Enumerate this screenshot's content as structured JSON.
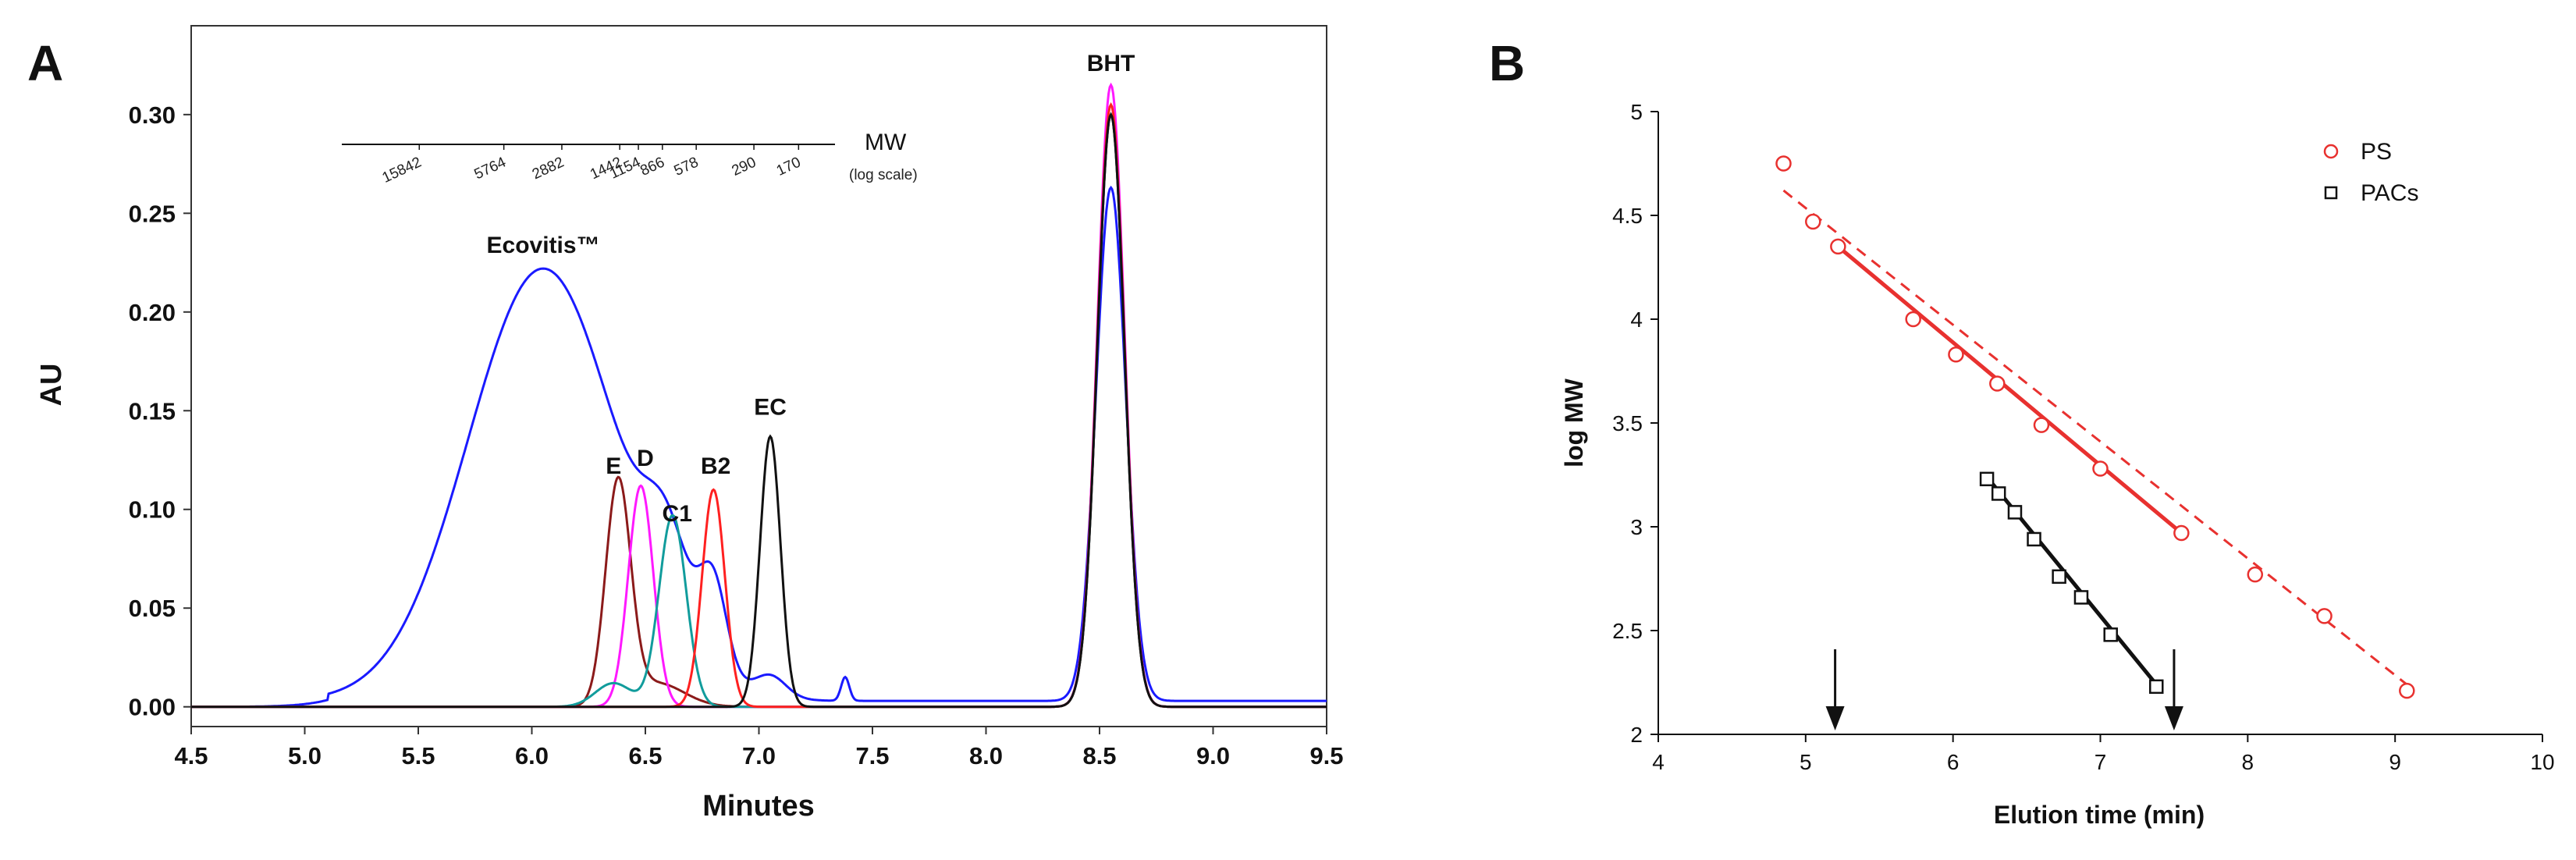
{
  "chart_data": [
    {
      "panel": "A",
      "type": "line",
      "xlabel": "Minutes",
      "ylabel": "AU",
      "xlim": [
        4.5,
        9.5
      ],
      "ylim": [
        -0.01,
        0.345
      ],
      "x_ticks": [
        "4.5",
        "5.0",
        "5.5",
        "6.0",
        "6.5",
        "7.0",
        "7.5",
        "8.0",
        "8.5",
        "9.0",
        "9.5"
      ],
      "y_ticks": [
        "0.00",
        "0.05",
        "0.10",
        "0.15",
        "0.20",
        "0.25",
        "0.30"
      ],
      "series": [
        {
          "name": "Ecovitis™",
          "color": "#1a1aff",
          "peaks": [
            [
              6.05,
              0.219,
              0.33
            ],
            [
              6.6,
              0.045,
              0.1
            ],
            [
              6.8,
              0.045,
              0.06
            ],
            [
              7.05,
              0.011,
              0.07
            ],
            [
              7.38,
              0.012,
              0.018
            ],
            [
              8.55,
              0.26,
              0.065
            ]
          ],
          "baseline": 0.003
        },
        {
          "name": "E",
          "color": "#8b1a1a",
          "peaks": [
            [
              6.38,
              0.112,
              0.055
            ],
            [
              6.55,
              0.012,
              0.12
            ],
            [
              8.55,
              0.3,
              0.06
            ]
          ],
          "baseline": 0.0
        },
        {
          "name": "D",
          "color": "#ff19ff",
          "peaks": [
            [
              6.48,
              0.112,
              0.055
            ],
            [
              8.55,
              0.315,
              0.06
            ]
          ],
          "baseline": 0.0
        },
        {
          "name": "C1",
          "color": "#119c9c",
          "peaks": [
            [
              6.62,
              0.097,
              0.06
            ],
            [
              6.36,
              0.012,
              0.08
            ],
            [
              8.55,
              0.3,
              0.06
            ]
          ],
          "baseline": 0.0
        },
        {
          "name": "B2",
          "color": "#ff2020",
          "peaks": [
            [
              6.8,
              0.11,
              0.05
            ],
            [
              8.55,
              0.305,
              0.06
            ]
          ],
          "baseline": 0.0
        },
        {
          "name": "EC",
          "color": "#111111",
          "peaks": [
            [
              7.05,
              0.137,
              0.045
            ],
            [
              8.55,
              0.3,
              0.06
            ]
          ],
          "baseline": 0.0
        }
      ],
      "peak_labels": [
        {
          "text": "Ecovitis™",
          "x": 6.05,
          "y": 0.23
        },
        {
          "text": "E",
          "x": 6.36,
          "y": 0.118
        },
        {
          "text": "D",
          "x": 6.5,
          "y": 0.122
        },
        {
          "text": "C1",
          "x": 6.64,
          "y": 0.094
        },
        {
          "text": "B2",
          "x": 6.81,
          "y": 0.118
        },
        {
          "text": "EC",
          "x": 7.05,
          "y": 0.148
        },
        {
          "text": "BHT",
          "x": 8.55,
          "y": 0.322
        }
      ],
      "mw_scale": {
        "label": "MW",
        "sublabel": "(log scale)",
        "ticks": [
          "15842",
          "5764",
          "2882",
          "1442",
          "1154",
          "866",
          "578",
          "290",
          "170"
        ]
      }
    },
    {
      "panel": "B",
      "type": "scatter",
      "xlabel": "Elution time (min)",
      "ylabel": "log MW",
      "xlim": [
        4,
        10
      ],
      "ylim": [
        2,
        5
      ],
      "x_ticks": [
        "4",
        "5",
        "6",
        "7",
        "8",
        "9",
        "10"
      ],
      "y_ticks": [
        "2",
        "2.5",
        "3",
        "3.5",
        "4",
        "4.5",
        "5"
      ],
      "series": [
        {
          "name": "PS",
          "marker": "circle",
          "color": "#e8312f",
          "x": [
            4.85,
            5.05,
            5.22,
            5.73,
            6.02,
            6.3,
            6.6,
            7.0,
            7.55,
            8.05,
            8.52,
            9.08
          ],
          "y": [
            4.75,
            4.47,
            4.35,
            4.0,
            3.83,
            3.69,
            3.49,
            3.28,
            2.97,
            2.77,
            2.57,
            2.21
          ],
          "fit_solid": [
            [
              5.22,
              4.35
            ],
            [
              7.55,
              2.97
            ]
          ],
          "fit_dashed": [
            [
              4.85,
              4.62
            ],
            [
              9.08,
              2.24
            ]
          ]
        },
        {
          "name": "PACs",
          "marker": "square",
          "color": "#111111",
          "x": [
            6.23,
            6.31,
            6.42,
            6.55,
            6.72,
            6.87,
            7.07,
            7.38
          ],
          "y": [
            3.23,
            3.16,
            3.07,
            2.94,
            2.76,
            2.66,
            2.48,
            2.23
          ],
          "fit_solid": [
            [
              6.23,
              3.24
            ],
            [
              7.38,
              2.24
            ]
          ]
        }
      ],
      "arrows_at_x": [
        5.2,
        7.5
      ]
    }
  ],
  "panel_labels": {
    "a": "A",
    "b": "B"
  }
}
